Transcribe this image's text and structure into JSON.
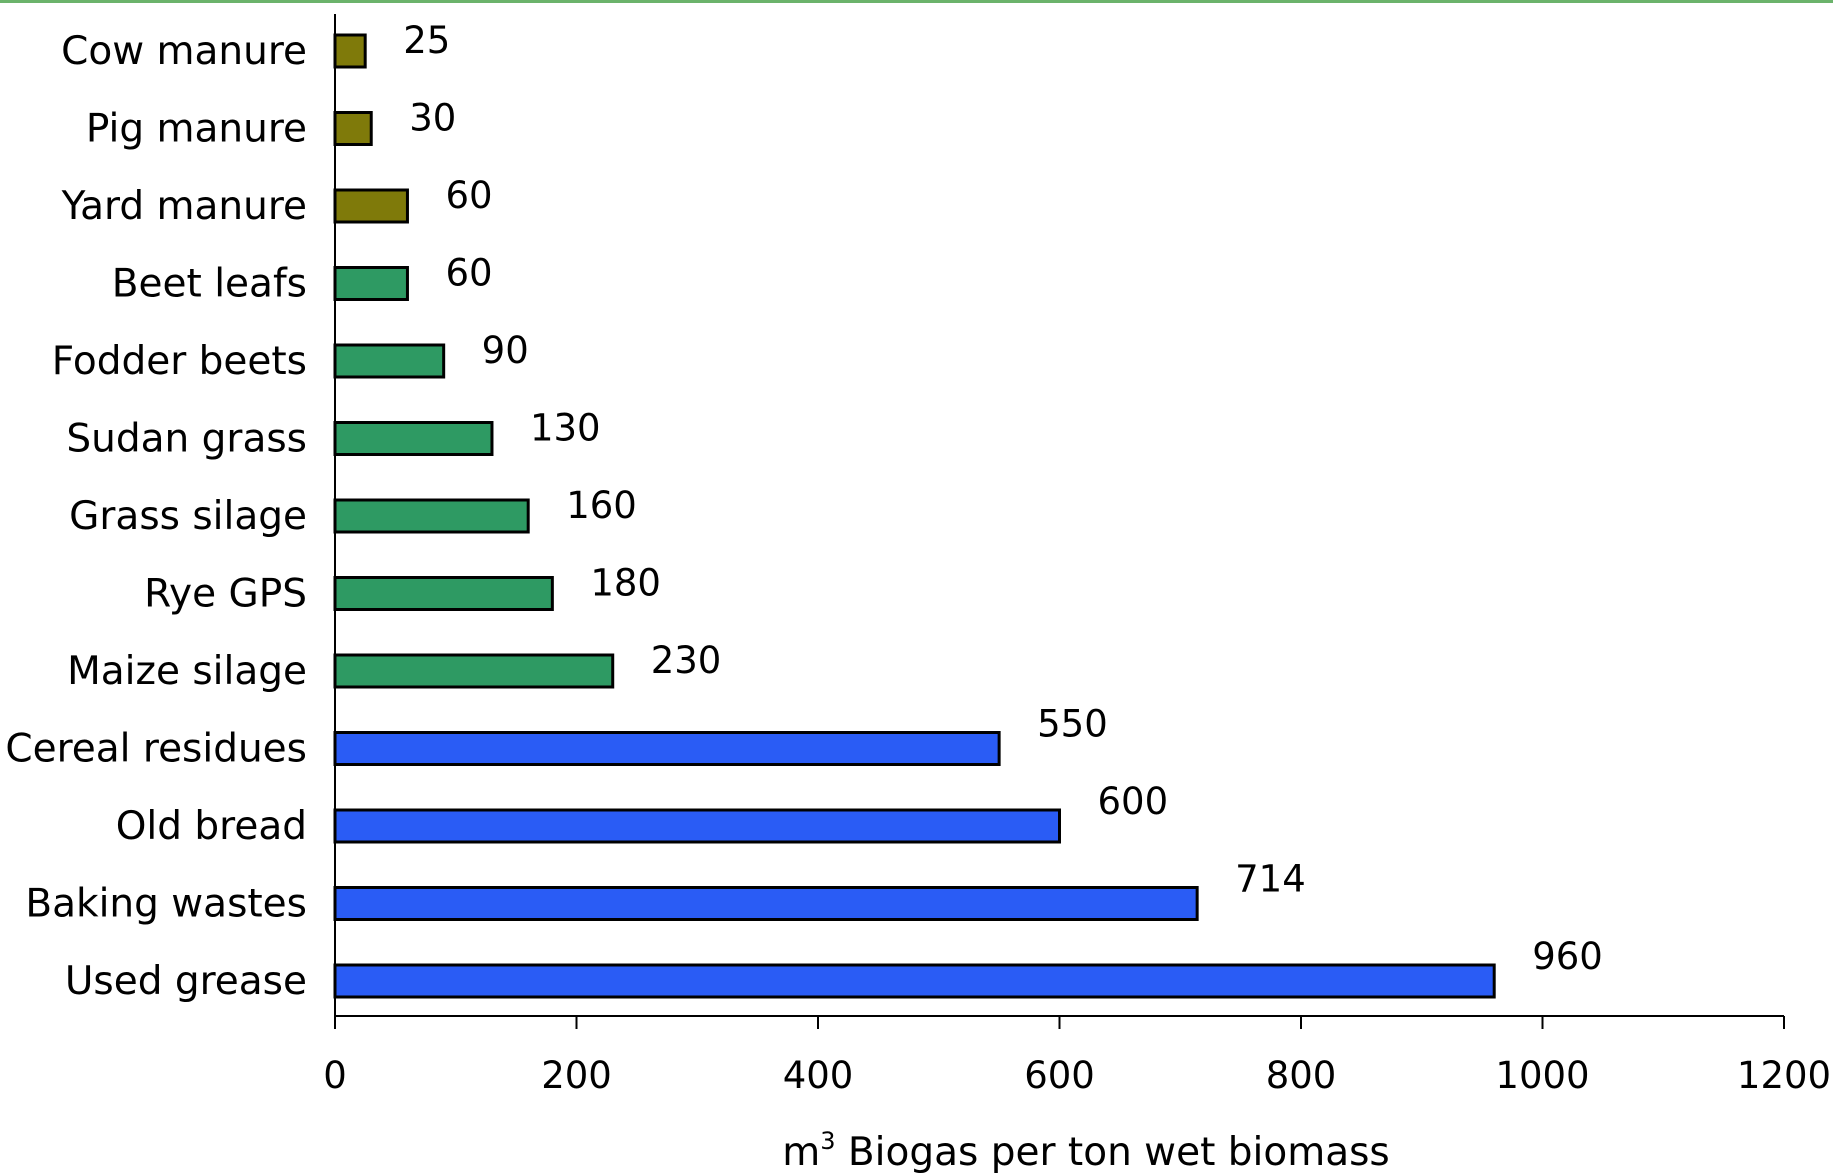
{
  "chart_data": {
    "type": "bar",
    "orientation": "horizontal",
    "categories": [
      "Cow manure",
      "Pig manure",
      "Yard manure",
      "Beet leafs",
      "Fodder beets",
      "Sudan grass",
      "Grass silage",
      "Rye GPS",
      "Maize silage",
      "Cereal residues",
      "Old bread",
      "Baking wastes",
      "Used grease"
    ],
    "values": [
      25,
      30,
      60,
      60,
      90,
      130,
      160,
      180,
      230,
      550,
      600,
      714,
      960
    ],
    "value_labels": [
      "25",
      "30",
      "60",
      "60",
      "90",
      "130",
      "160",
      "180",
      "230",
      "550",
      "600",
      "714",
      "960"
    ],
    "bar_colors": [
      "#7f7a0a",
      "#7f7a0a",
      "#7f7a0a",
      "#2e9a63",
      "#2e9a63",
      "#2e9a63",
      "#2e9a63",
      "#2e9a63",
      "#2e9a63",
      "#2a5cf5",
      "#2a5cf5",
      "#2a5cf5",
      "#2a5cf5"
    ],
    "xlabel_unit": "m",
    "xlabel_superscript": "3",
    "xlabel": "Biogas per ton wet biomass",
    "xlim": [
      0,
      1200
    ],
    "xticks": [
      0,
      200,
      400,
      600,
      800,
      1000,
      1200
    ],
    "grid": false,
    "legend": "none"
  }
}
